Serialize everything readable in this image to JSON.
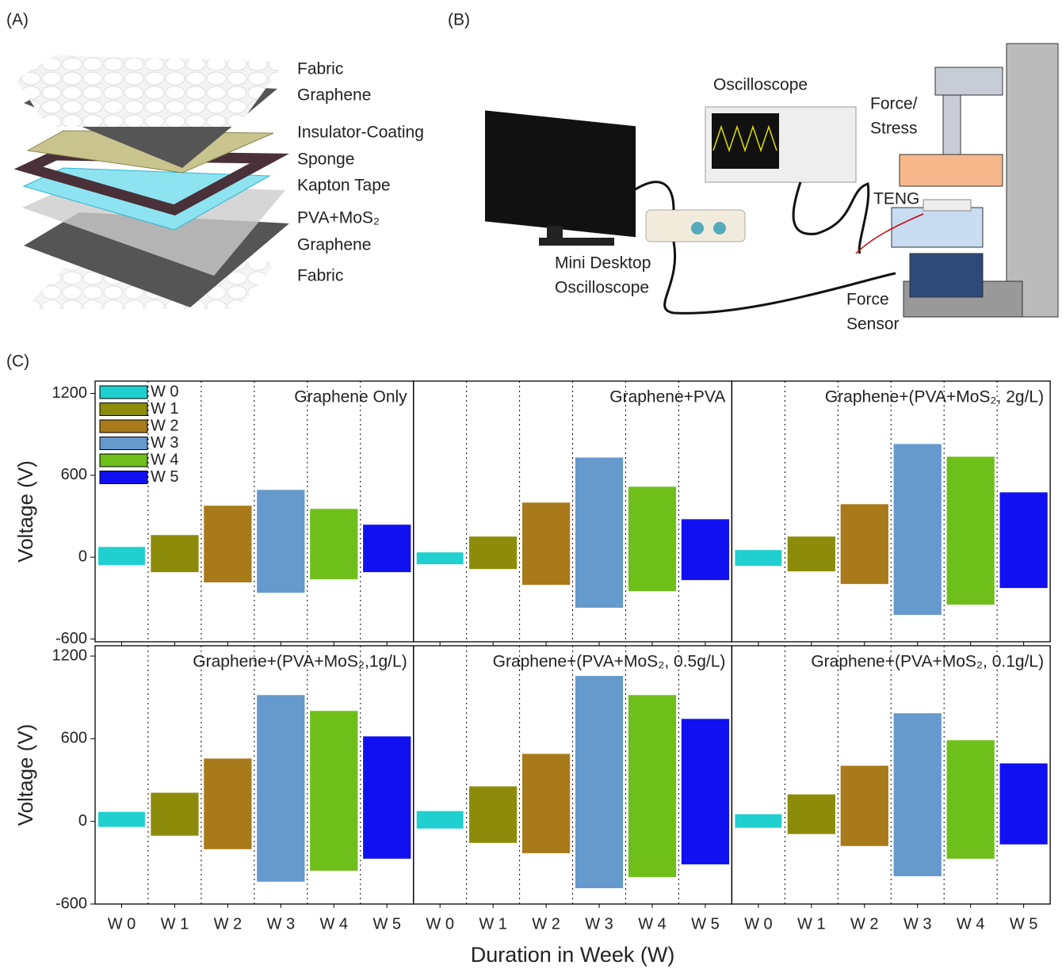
{
  "panels": {
    "a": {
      "label": "(A)",
      "layers": [
        "Fabric",
        "Graphene",
        "Insulator-Coating",
        "Sponge",
        "Kapton Tape",
        "PVA+MoS₂",
        "Graphene",
        "Fabric"
      ]
    },
    "b": {
      "label": "(B)",
      "oscilloscope": "Oscilloscope",
      "force": [
        "Force/",
        "Stress"
      ],
      "teng": "TENG",
      "mini": [
        "Mini Desktop",
        "Oscilloscope"
      ],
      "sensor": [
        "Force",
        "Sensor"
      ]
    },
    "c": {
      "label": "(C)"
    }
  },
  "chart_data": [
    {
      "type": "range",
      "title": "Graphene Only",
      "ylabel": "Voltage (V)",
      "ylim": [
        -620,
        1290
      ],
      "yticks": [
        -600,
        0,
        600,
        1200
      ],
      "legend": [
        "W 0",
        "W 1",
        "W 2",
        "W 3",
        "W 4",
        "W 5"
      ],
      "legend_corner": "top-left",
      "colors": [
        "#20cfcf",
        "#8c8c0a",
        "#a87a1a",
        "#6699cc",
        "#6fbf1a",
        "#1010f0"
      ],
      "high": [
        75,
        162,
        377,
        493,
        354,
        238
      ],
      "low": [
        -58,
        -110,
        -185,
        -261,
        -162,
        -110
      ]
    },
    {
      "type": "range",
      "title": "Graphene+PVA",
      "ylim": [
        -620,
        1290
      ],
      "colors": [
        "#20cfcf",
        "#8c8c0a",
        "#a87a1a",
        "#6699cc",
        "#6fbf1a",
        "#1010f0"
      ],
      "high": [
        35,
        151,
        400,
        730,
        516,
        278
      ],
      "low": [
        -52,
        -87,
        -203,
        -371,
        -249,
        -168
      ]
    },
    {
      "type": "range",
      "title": "Graphene+(PVA+MoS₂, 2g/L)",
      "ylim": [
        -620,
        1290
      ],
      "colors": [
        "#20cfcf",
        "#8c8c0a",
        "#a87a1a",
        "#6699cc",
        "#6fbf1a",
        "#1010f0"
      ],
      "high": [
        52,
        151,
        388,
        829,
        736,
        475
      ],
      "low": [
        -64,
        -104,
        -197,
        -423,
        -348,
        -226
      ]
    },
    {
      "type": "range",
      "title": "Graphene+(PVA+MoS₂,1g/L)",
      "ylabel": "Voltage (V)",
      "ylim": [
        -600,
        1275
      ],
      "yticks": [
        -600,
        0,
        600,
        1200
      ],
      "categories": [
        "W 0",
        "W 1",
        "W 2",
        "W 3",
        "W 4",
        "W 5"
      ],
      "colors": [
        "#20cfcf",
        "#8c8c0a",
        "#a87a1a",
        "#6699cc",
        "#6fbf1a",
        "#1010f0"
      ],
      "high": [
        69,
        208,
        456,
        917,
        802,
        617
      ],
      "low": [
        -40,
        -104,
        -202,
        -438,
        -358,
        -271
      ]
    },
    {
      "type": "range",
      "title": "Graphene+(PVA+MoS₂, 0.5g/L)",
      "xlabel": "Duration in Week (W)",
      "ylim": [
        -600,
        1275
      ],
      "categories": [
        "W 0",
        "W 1",
        "W 2",
        "W 3",
        "W 4",
        "W 5"
      ],
      "colors": [
        "#20cfcf",
        "#8c8c0a",
        "#a87a1a",
        "#6699cc",
        "#6fbf1a",
        "#1010f0"
      ],
      "high": [
        75,
        254,
        490,
        1056,
        917,
        744
      ],
      "low": [
        -52,
        -156,
        -231,
        -485,
        -404,
        -312
      ]
    },
    {
      "type": "range",
      "title": "Graphene+(PVA+MoS₂, 0.1g/L)",
      "ylim": [
        -600,
        1275
      ],
      "categories": [
        "W 0",
        "W 1",
        "W 2",
        "W 3",
        "W 4",
        "W 5"
      ],
      "colors": [
        "#20cfcf",
        "#8c8c0a",
        "#a87a1a",
        "#6699cc",
        "#6fbf1a",
        "#1010f0"
      ],
      "high": [
        52,
        196,
        404,
        785,
        589,
        421
      ],
      "low": [
        -46,
        -92,
        -179,
        -398,
        -271,
        -167
      ]
    }
  ]
}
